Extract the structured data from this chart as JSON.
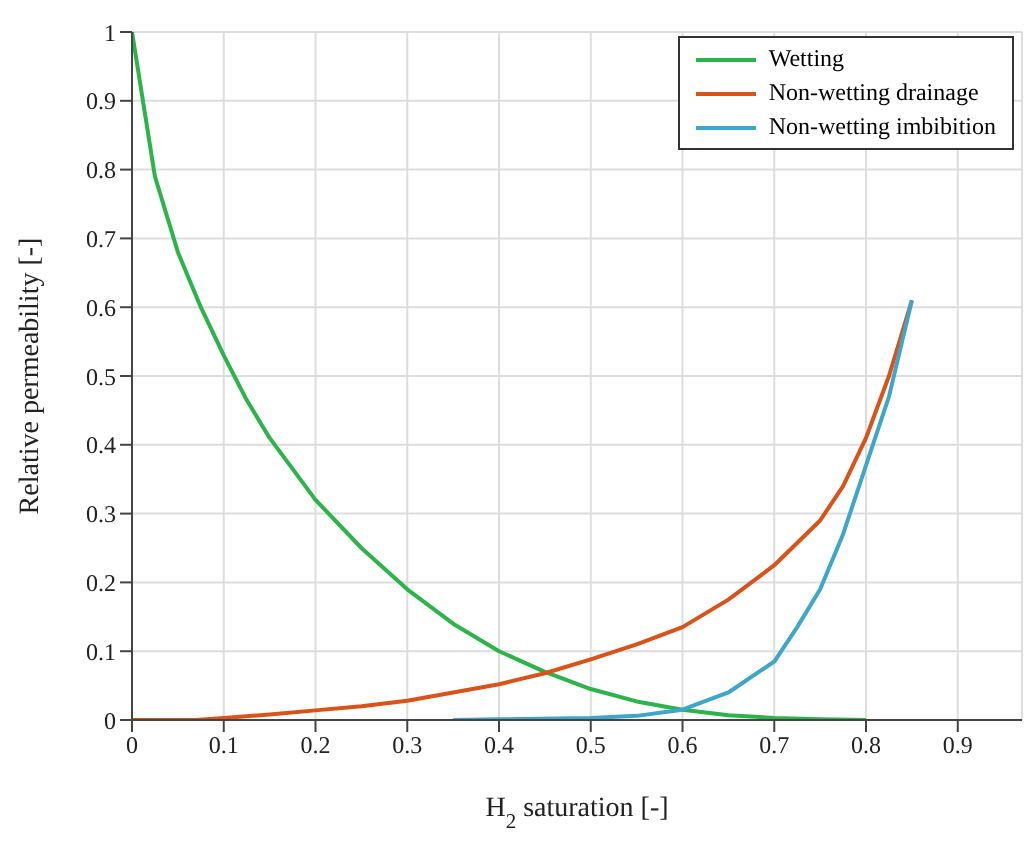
{
  "chart_data": {
    "type": "line",
    "xlabel": "H$_{2}$ saturation [-]",
    "ylabel": "Relative permeability [-]",
    "xlim": [
      0,
      0.97
    ],
    "xticks": [
      0,
      0.1,
      0.2,
      0.3,
      0.4,
      0.5,
      0.6,
      0.7,
      0.8,
      0.9
    ],
    "ylim": [
      0,
      1
    ],
    "yticks": [
      0,
      0.1,
      0.2,
      0.3,
      0.4,
      0.5,
      0.6,
      0.7,
      0.8,
      0.9,
      1
    ],
    "grid": true,
    "legend": "top right",
    "marker": "none",
    "line_style": "solid",
    "series": [
      {
        "name": "Wetting",
        "color": "#2cb34a",
        "x": [
          0,
          0.025,
          0.05,
          0.075,
          0.1,
          0.125,
          0.15,
          0.2,
          0.25,
          0.3,
          0.35,
          0.4,
          0.45,
          0.5,
          0.55,
          0.6,
          0.65,
          0.7,
          0.75,
          0.8
        ],
        "values": [
          1,
          0.79,
          0.68,
          0.6,
          0.53,
          0.465,
          0.41,
          0.32,
          0.25,
          0.19,
          0.14,
          0.1,
          0.07,
          0.045,
          0.027,
          0.015,
          0.007,
          0.003,
          0.001,
          0
        ]
      },
      {
        "name": "Non-wetting drainage",
        "color": "#d95319",
        "x": [
          0,
          0.07,
          0.1,
          0.15,
          0.2,
          0.25,
          0.3,
          0.35,
          0.4,
          0.45,
          0.5,
          0.55,
          0.6,
          0.65,
          0.7,
          0.75,
          0.775,
          0.8,
          0.825,
          0.85
        ],
        "values": [
          0,
          0,
          0.003,
          0.008,
          0.014,
          0.02,
          0.028,
          0.04,
          0.052,
          0.068,
          0.088,
          0.11,
          0.135,
          0.175,
          0.225,
          0.29,
          0.34,
          0.41,
          0.5,
          0.61
        ]
      },
      {
        "name": "Non-wetting imbibition",
        "color": "#3ea6c8",
        "x": [
          0.35,
          0.4,
          0.5,
          0.55,
          0.6,
          0.65,
          0.7,
          0.725,
          0.75,
          0.775,
          0.8,
          0.825,
          0.85
        ],
        "values": [
          0,
          0.001,
          0.003,
          0.006,
          0.015,
          0.04,
          0.085,
          0.135,
          0.19,
          0.27,
          0.37,
          0.47,
          0.61
        ]
      }
    ]
  }
}
